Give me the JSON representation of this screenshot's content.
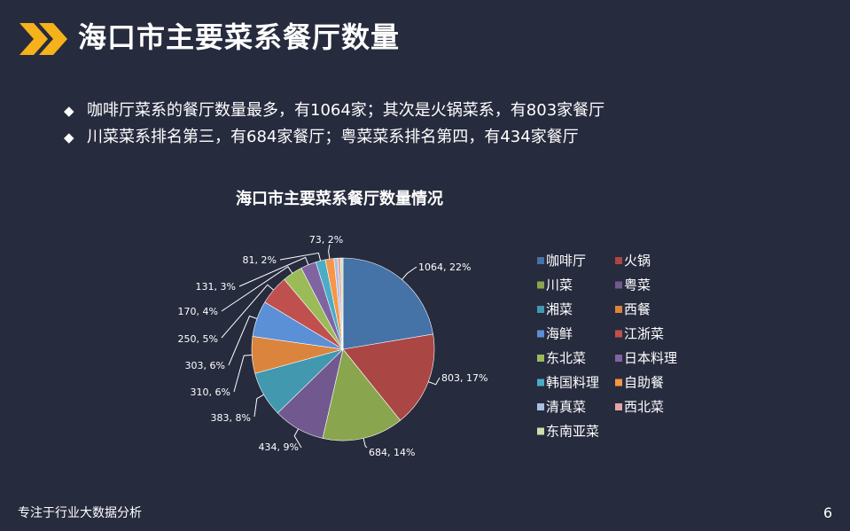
{
  "header": {
    "title": "海口市主要菜系餐厅数量"
  },
  "bullets": [
    {
      "text": "咖啡厅菜系的餐厅数量最多，有1064家；其次是火锅菜系，有803家餐厅"
    },
    {
      "text": "川菜菜系排名第三，有684家餐厅；粤菜菜系排名第四，有434家餐厅"
    }
  ],
  "bullet_icon": "◆",
  "chart_data": {
    "type": "pie",
    "title": "海口市主要菜系餐厅数量情况",
    "legend_position": "right",
    "categories": [
      "咖啡厅",
      "火锅",
      "川菜",
      "粤菜",
      "湘菜",
      "西餐",
      "海鲜",
      "江浙菜",
      "东北菜",
      "日本料理",
      "韩国料理",
      "自助餐",
      "清真菜",
      "西北菜",
      "东南亚菜"
    ],
    "values": [
      1064,
      803,
      684,
      434,
      383,
      310,
      303,
      250,
      170,
      131,
      81,
      73,
      30,
      25,
      20
    ],
    "data_labels": [
      "1064, 22%",
      "803, 17%",
      "684, 14%",
      "434, 9%",
      "383, 8%",
      "310, 6%",
      "303, 6%",
      "250, 5%",
      "170, 4%",
      "131, 3%",
      "81, 2%",
      "73, 2%",
      "",
      "",
      ""
    ],
    "colors": [
      "#4572a7",
      "#aa4643",
      "#89a54e",
      "#71588f",
      "#4198af",
      "#db843d",
      "#5b8fd6",
      "#c0504d",
      "#9bbb59",
      "#8064a2",
      "#4bacc6",
      "#f79646",
      "#a9bfe0",
      "#e3a5a3",
      "#cde0b0"
    ]
  },
  "footer": {
    "text": "专注于行业大数据分析",
    "page": "6"
  }
}
